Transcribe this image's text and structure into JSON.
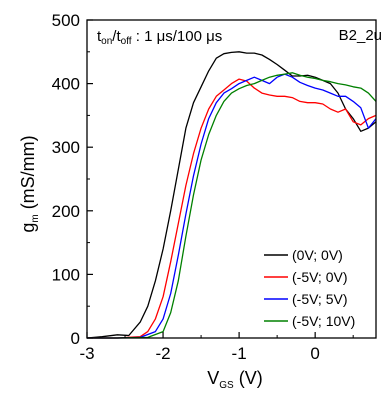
{
  "chart_data": {
    "type": "line",
    "xlim": [
      -3,
      0.8
    ],
    "ylim": [
      0,
      500
    ],
    "x_ticks": [
      -3,
      -2,
      -1,
      0
    ],
    "y_ticks": [
      0,
      100,
      200,
      300,
      400,
      500
    ],
    "x_tick_labels": [
      "-3",
      "-2",
      "-1",
      "0"
    ],
    "y_tick_labels": [
      "0",
      "100",
      "200",
      "300",
      "400",
      "500"
    ],
    "ylabel": {
      "base": "g",
      "sub": "m",
      "rest": " (mS/mm)"
    },
    "xlabel": {
      "base": "V",
      "sub": "GS",
      "rest": " (V)"
    },
    "annotation": {
      "t1": "t",
      "s1": "on",
      "mid": "/t",
      "s2": "off",
      "rest": " : 1 μs/100 μs"
    },
    "device_label": "B2_2u",
    "legend_position": "bottom-right",
    "grid": false,
    "series": [
      {
        "name": "(0V; 0V)",
        "color": "#000000",
        "x": [
          -3.0,
          -2.8,
          -2.6,
          -2.45,
          -2.3,
          -2.2,
          -2.1,
          -2.0,
          -1.9,
          -1.8,
          -1.7,
          -1.6,
          -1.5,
          -1.4,
          -1.3,
          -1.2,
          -1.1,
          -1.0,
          -0.9,
          -0.8,
          -0.7,
          -0.6,
          -0.5,
          -0.4,
          -0.3,
          -0.2,
          -0.1,
          0.0,
          0.1,
          0.2,
          0.3,
          0.4,
          0.5,
          0.6,
          0.7,
          0.8
        ],
        "y": [
          0,
          2,
          5,
          4,
          25,
          50,
          90,
          140,
          200,
          265,
          330,
          370,
          395,
          420,
          440,
          447,
          449,
          450,
          448,
          448,
          445,
          438,
          430,
          421,
          412,
          412,
          413,
          410,
          405,
          400,
          385,
          360,
          345,
          325,
          330,
          340
        ]
      },
      {
        "name": "(-5V; 0V)",
        "color": "#ff0000",
        "x": [
          -3.0,
          -2.6,
          -2.3,
          -2.2,
          -2.1,
          -2.0,
          -1.9,
          -1.8,
          -1.7,
          -1.6,
          -1.5,
          -1.4,
          -1.3,
          -1.2,
          -1.1,
          -1.0,
          -0.9,
          -0.8,
          -0.7,
          -0.6,
          -0.5,
          -0.4,
          -0.3,
          -0.2,
          -0.1,
          0.0,
          0.1,
          0.2,
          0.3,
          0.4,
          0.5,
          0.6,
          0.7,
          0.8
        ],
        "y": [
          0,
          0,
          2,
          10,
          30,
          65,
          120,
          180,
          240,
          290,
          330,
          360,
          380,
          390,
          400,
          407,
          404,
          393,
          385,
          382,
          380,
          380,
          378,
          372,
          370,
          370,
          368,
          360,
          355,
          360,
          340,
          335,
          345,
          350
        ]
      },
      {
        "name": "(-5V; 5V)",
        "color": "#0000ff",
        "x": [
          -3.0,
          -2.6,
          -2.3,
          -2.1,
          -2.0,
          -1.9,
          -1.8,
          -1.7,
          -1.6,
          -1.5,
          -1.4,
          -1.3,
          -1.2,
          -1.1,
          -1.0,
          -0.9,
          -0.8,
          -0.7,
          -0.6,
          -0.5,
          -0.4,
          -0.3,
          -0.2,
          -0.1,
          0.0,
          0.1,
          0.2,
          0.3,
          0.4,
          0.5,
          0.6,
          0.7,
          0.8
        ],
        "y": [
          0,
          0,
          1,
          10,
          30,
          70,
          130,
          195,
          255,
          305,
          345,
          370,
          385,
          392,
          400,
          405,
          410,
          405,
          400,
          410,
          415,
          410,
          402,
          397,
          393,
          390,
          385,
          380,
          380,
          372,
          362,
          330,
          345
        ]
      },
      {
        "name": "(-5V; 10V)",
        "color": "#008000",
        "x": [
          -3.0,
          -2.6,
          -2.2,
          -2.0,
          -1.9,
          -1.8,
          -1.7,
          -1.6,
          -1.5,
          -1.4,
          -1.3,
          -1.2,
          -1.1,
          -1.0,
          -0.9,
          -0.8,
          -0.7,
          -0.6,
          -0.5,
          -0.4,
          -0.3,
          -0.2,
          -0.1,
          0.0,
          0.1,
          0.2,
          0.3,
          0.4,
          0.5,
          0.6,
          0.7,
          0.8
        ],
        "y": [
          0,
          0,
          1,
          10,
          40,
          90,
          160,
          225,
          280,
          320,
          350,
          372,
          385,
          392,
          397,
          400,
          405,
          410,
          413,
          415,
          417,
          413,
          410,
          408,
          405,
          403,
          400,
          398,
          395,
          393,
          385,
          372
        ]
      }
    ]
  }
}
